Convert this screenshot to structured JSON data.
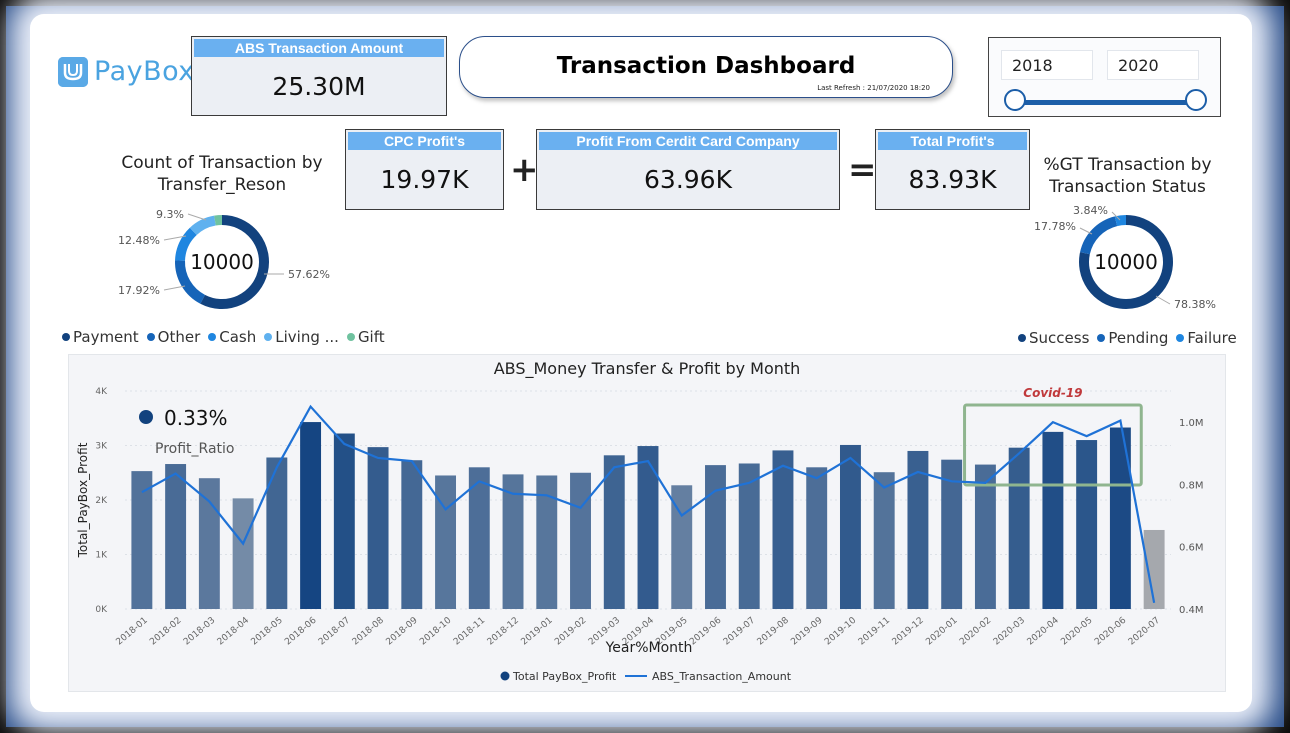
{
  "brand": {
    "name": "PayBox"
  },
  "kpis": {
    "abs_amount": {
      "label": "ABS Transaction Amount",
      "value": "25.30M"
    },
    "cpc_profit": {
      "label": "CPC Profit's",
      "value": "19.97K"
    },
    "credit_profit": {
      "label": "Profit From Cerdit Card Company",
      "value": "63.96K"
    },
    "total_profit": {
      "label": "Total Profit's",
      "value": "83.93K"
    },
    "plus": "+",
    "equals": "="
  },
  "header": {
    "title": "Transaction Dashboard",
    "refresh": "Last Refresh : 21/07/2020 18:20"
  },
  "slider": {
    "start": "2018",
    "end": "2020"
  },
  "reason_donut": {
    "title_line1": "Count of Transaction by",
    "title_line2": "Transfer_Reson",
    "center": "10000",
    "slices": [
      {
        "name": "Payment",
        "value": 57.62,
        "label": "57.62%",
        "color": "#12427e"
      },
      {
        "name": "Other",
        "value": 17.92,
        "label": "17.92%",
        "color": "#1664b8"
      },
      {
        "name": "Cash",
        "value": 12.48,
        "label": "12.48%",
        "color": "#1f86e0"
      },
      {
        "name": "Living ...",
        "value": 9.3,
        "label": "9.3%",
        "color": "#5fb1ef"
      },
      {
        "name": "Gift",
        "value": 2.68,
        "label": "",
        "color": "#6fc29f"
      }
    ]
  },
  "status_donut": {
    "title_line1": "%GT Transaction by",
    "title_line2": "Transaction Status",
    "center": "10000",
    "slices": [
      {
        "name": "Success",
        "value": 78.38,
        "label": "78.38%",
        "color": "#12427e"
      },
      {
        "name": "Pending",
        "value": 17.78,
        "label": "17.78%",
        "color": "#1664b8"
      },
      {
        "name": "Failure",
        "value": 3.84,
        "label": "3.84%",
        "color": "#1f86e0"
      }
    ]
  },
  "chart_data": {
    "type": "bar",
    "title": "ABS_Money Transfer & Profit by Month",
    "xlabel": "Year%Month",
    "ylabel": "Total_PayBox_Profit",
    "ylim": [
      0,
      4000
    ],
    "y_ticks": [
      "0K",
      "1K",
      "2K",
      "3K",
      "4K"
    ],
    "y2lim": [
      0.4,
      1.1
    ],
    "y2_ticks": [
      "0.4M",
      "0.6M",
      "0.8M",
      "1.0M"
    ],
    "categories": [
      "2018-01",
      "2018-02",
      "2018-03",
      "2018-04",
      "2018-05",
      "2018-06",
      "2018-07",
      "2018-08",
      "2018-09",
      "2018-10",
      "2018-11",
      "2018-12",
      "2019-01",
      "2019-02",
      "2019-03",
      "2019-04",
      "2019-05",
      "2019-06",
      "2019-07",
      "2019-08",
      "2019-09",
      "2019-10",
      "2019-11",
      "2019-12",
      "2020-01",
      "2020-02",
      "2020-03",
      "2020-04",
      "2020-05",
      "2020-06",
      "2020-07"
    ],
    "series": [
      {
        "name": "Total PayBox_Profit",
        "kind": "bar",
        "values": [
          2530,
          2660,
          2400,
          2030,
          2780,
          3430,
          3220,
          2970,
          2730,
          2450,
          2600,
          2470,
          2450,
          2500,
          2820,
          2990,
          2270,
          2640,
          2670,
          2910,
          2600,
          3010,
          2510,
          2900,
          2740,
          2650,
          2960,
          3250,
          3100,
          3330,
          1450
        ]
      },
      {
        "name": "ABS_Transaction_Amount",
        "kind": "line",
        "values": [
          0.775,
          0.835,
          0.745,
          0.61,
          0.855,
          1.05,
          0.93,
          0.885,
          0.875,
          0.72,
          0.81,
          0.77,
          0.765,
          0.725,
          0.855,
          0.875,
          0.7,
          0.78,
          0.805,
          0.86,
          0.82,
          0.885,
          0.79,
          0.84,
          0.81,
          0.805,
          0.9,
          1.0,
          0.955,
          1.005,
          0.42
        ]
      }
    ],
    "annotation_kpi": {
      "value": "0.33%",
      "label": "Profit_Ratio"
    },
    "highlight": {
      "label": "Covid-19",
      "from": "2020-02",
      "to": "2020-06"
    },
    "legend": {
      "bar": "Total PayBox_Profit",
      "line": "ABS_Transaction_Amount"
    }
  }
}
